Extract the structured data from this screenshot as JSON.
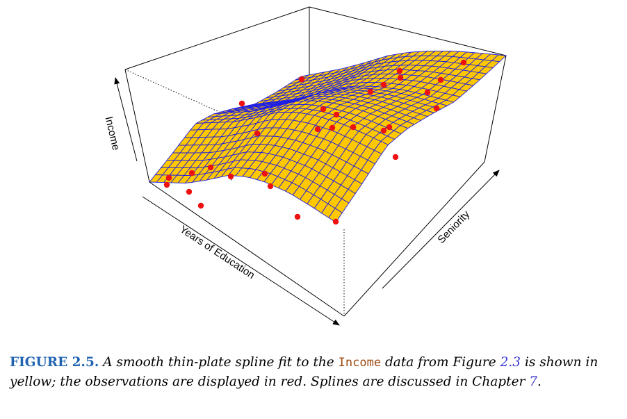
{
  "figure": {
    "axis_labels": {
      "z": "Income",
      "x": "Years of Education",
      "y": "Seniority"
    },
    "caption": {
      "label": "FIGURE 2.5.",
      "text_before_code": "A smooth thin-plate spline fit to the",
      "code": "Income",
      "text_after_code": "data from Figure",
      "ref_figure": "2.3",
      "text_after_ref": "is shown in yellow; the observations are displayed in red. Splines are discussed in Chapter",
      "ref_chapter": "7",
      "end": "."
    },
    "colors": {
      "surface": "#ffc800",
      "mesh": "#1e1ee6",
      "points": "#ee1111",
      "box": "#000000"
    }
  }
}
